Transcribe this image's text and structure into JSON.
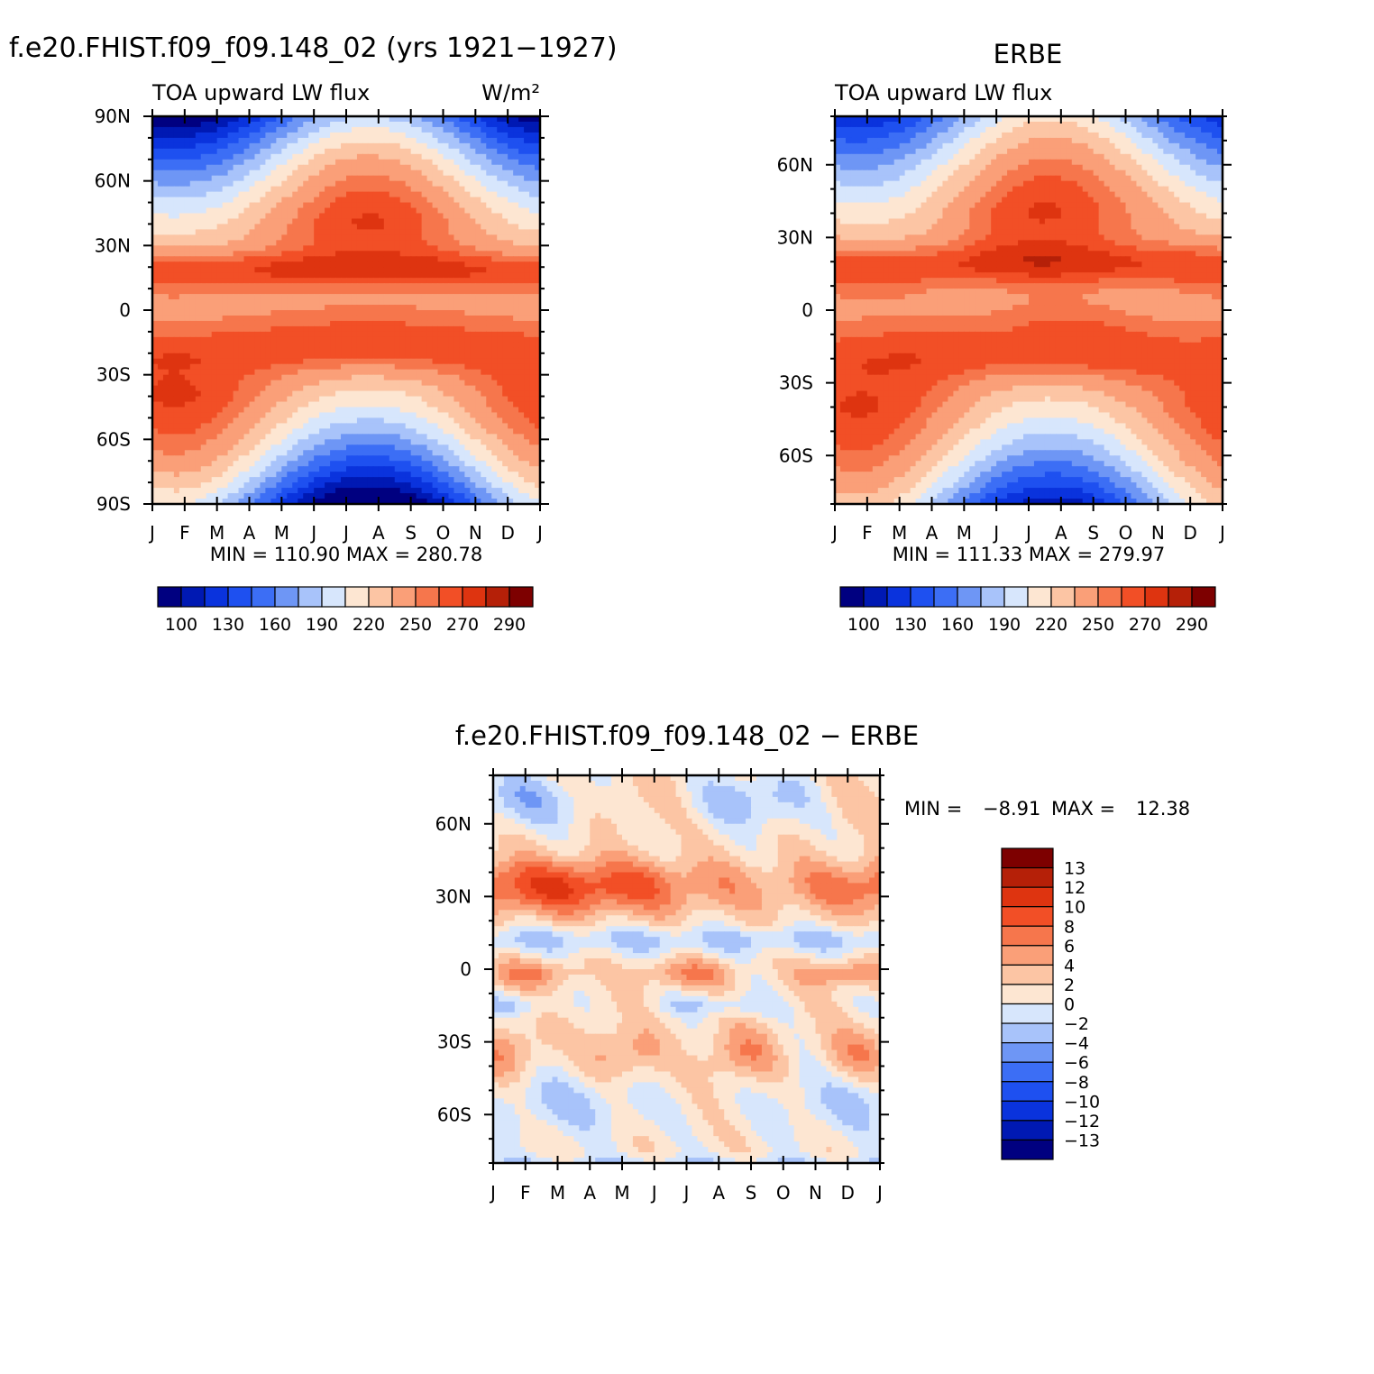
{
  "chart_data": {
    "type": "contour",
    "panels": [
      {
        "id": "model",
        "title": "f.e20.FHIST.f09_f09.148_02 (yrs 1921−1927)",
        "subtitle_left": "TOA upward LW flux",
        "subtitle_right": "W/m²",
        "stats": "MIN = 110.90 MAX = 280.78",
        "x_ticks": [
          "J",
          "F",
          "M",
          "A",
          "M",
          "J",
          "J",
          "A",
          "S",
          "O",
          "N",
          "D",
          "J"
        ],
        "y_ticks": [
          "90N",
          "60N",
          "30N",
          "0",
          "30S",
          "60S",
          "90S"
        ],
        "ylim": [
          -90,
          90
        ],
        "min": 110.9,
        "max": 280.78,
        "colorbar_labels": [
          "100",
          "130",
          "160",
          "190",
          "220",
          "250",
          "270",
          "290"
        ]
      },
      {
        "id": "obs",
        "title": "ERBE",
        "subtitle_left": "TOA upward LW flux",
        "stats": "MIN = 111.33 MAX = 279.97",
        "x_ticks": [
          "J",
          "F",
          "M",
          "A",
          "M",
          "J",
          "J",
          "A",
          "S",
          "O",
          "N",
          "D",
          "J"
        ],
        "y_ticks": [
          "60N",
          "30N",
          "0",
          "30S",
          "60S"
        ],
        "ylim": [
          -80,
          80
        ],
        "min": 111.33,
        "max": 279.97,
        "colorbar_labels": [
          "100",
          "130",
          "160",
          "190",
          "220",
          "250",
          "270",
          "290"
        ]
      },
      {
        "id": "diff",
        "title": "f.e20.FHIST.f09_f09.148_02 − ERBE",
        "min_label": "MIN =",
        "min_value": "−8.91",
        "max_label": "MAX =",
        "max_value": "12.38",
        "x_ticks": [
          "J",
          "F",
          "M",
          "A",
          "M",
          "J",
          "J",
          "A",
          "S",
          "O",
          "N",
          "D",
          "J"
        ],
        "y_ticks": [
          "60N",
          "30N",
          "0",
          "30S",
          "60S"
        ],
        "ylim": [
          -80,
          80
        ],
        "min": -8.91,
        "max": 12.38,
        "colorbar_labels": [
          "13",
          "12",
          "10",
          "8",
          "6",
          "4",
          "2",
          "0",
          "−2",
          "−4",
          "−6",
          "−8",
          "−10",
          "−12",
          "−13"
        ]
      }
    ],
    "abs_levels": [
      100,
      115,
      130,
      145,
      160,
      175,
      190,
      205,
      220,
      235,
      250,
      260,
      270,
      280,
      290
    ],
    "diff_levels": [
      -13,
      -12,
      -10,
      -8,
      -6,
      -4,
      -2,
      0,
      2,
      4,
      6,
      8,
      10,
      12,
      13
    ],
    "colors": [
      "#000080",
      "#0019b3",
      "#0a33dd",
      "#1e50f0",
      "#3c6ef5",
      "#6e96f5",
      "#a8c3fa",
      "#d7e6fc",
      "#fde6d2",
      "#fcc5a4",
      "#fa9f78",
      "#f6764c",
      "#f24f26",
      "#de3410",
      "#b52008",
      "#7d0000"
    ]
  }
}
